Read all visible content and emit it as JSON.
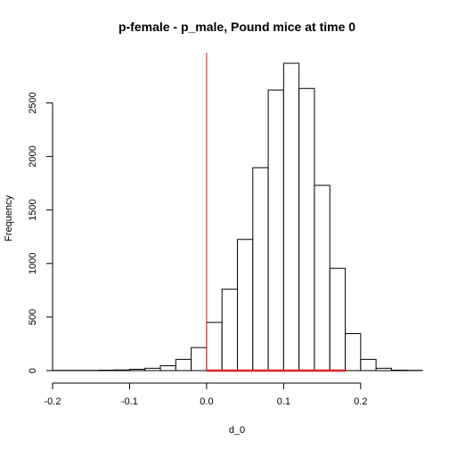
{
  "chart_data": {
    "type": "bar",
    "title": "p-female - p_male, Pound mice at time 0",
    "xlabel": "d_0",
    "ylabel": "Frequency",
    "xlim": [
      -0.2,
      0.28
    ],
    "ylim": [
      0,
      2970
    ],
    "bin_edges": [
      -0.2,
      -0.18,
      -0.16,
      -0.14,
      -0.12,
      -0.1,
      -0.08,
      -0.06,
      -0.04,
      -0.02,
      0.0,
      0.02,
      0.04,
      0.06,
      0.08,
      0.1,
      0.12,
      0.14,
      0.16,
      0.18,
      0.2,
      0.22,
      0.24,
      0.26,
      0.28
    ],
    "counts": [
      2,
      2,
      2,
      4,
      6,
      12,
      22,
      45,
      105,
      215,
      450,
      760,
      1225,
      1895,
      2620,
      2870,
      2635,
      1730,
      955,
      345,
      105,
      22,
      4,
      2
    ],
    "x_ticks": [
      -0.2,
      -0.1,
      0.0,
      0.1,
      0.2
    ],
    "x_tick_labels": [
      "-0.2",
      "-0.1",
      "0.0",
      "0.1",
      "0.2"
    ],
    "y_ticks": [
      0,
      500,
      1000,
      1500,
      2000,
      2500
    ],
    "y_tick_labels": [
      "0",
      "500",
      "1000",
      "1500",
      "2000",
      "2500"
    ],
    "vertical_line": {
      "x": 0.0,
      "color": "#e02020"
    },
    "interval_segment": {
      "from": 0.0,
      "to": 0.18,
      "y": 0,
      "color": "#e02020"
    },
    "grid": false,
    "legend": "none"
  }
}
